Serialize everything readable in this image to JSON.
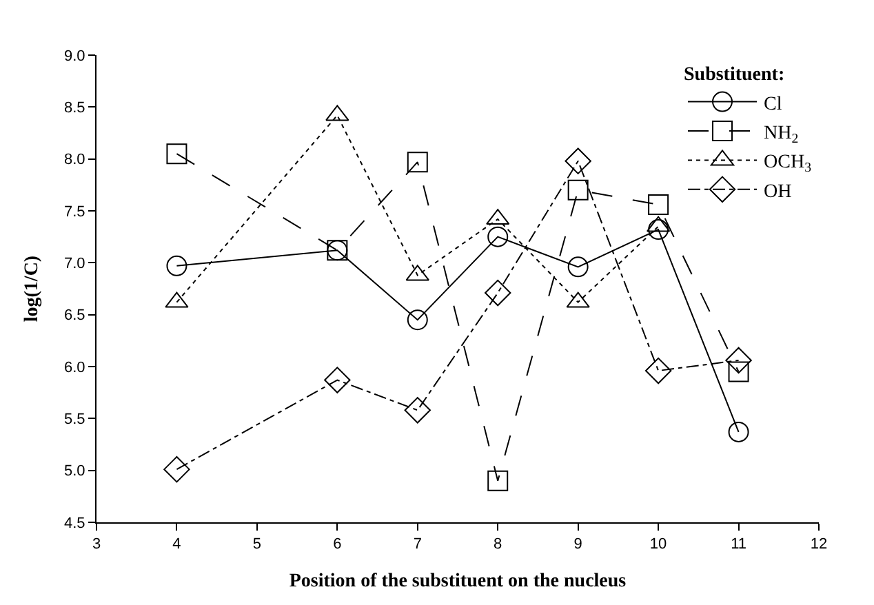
{
  "chart_data": {
    "type": "line",
    "xlabel": "Position of the substituent on the nucleus",
    "ylabel": "log(1/C)",
    "legend_title": "Substituent:",
    "legend": "top right",
    "grid": false,
    "xlim": [
      3,
      12
    ],
    "xticks": [
      3,
      4,
      5,
      6,
      7,
      8,
      9,
      10,
      11,
      12
    ],
    "ylim": [
      4.5,
      9.0
    ],
    "yticks": [
      {
        "value": 4.5,
        "label": "4.5"
      },
      {
        "value": 5,
        "label": "5.0"
      },
      {
        "value": 5.5,
        "label": "5.5"
      },
      {
        "value": 6,
        "label": "6.0"
      },
      {
        "value": 6.5,
        "label": "6.5"
      },
      {
        "value": 7,
        "label": "7.0"
      },
      {
        "value": 7.5,
        "label": "7.5"
      },
      {
        "value": 8,
        "label": "8.0"
      },
      {
        "value": 8.5,
        "label": "8.5"
      },
      {
        "value": 9,
        "label": "9.0"
      }
    ],
    "series": [
      {
        "name": "Cl",
        "color": "#000000",
        "marker": "circle",
        "line_style": "solid",
        "x": [
          4,
          6,
          7,
          8,
          9,
          10,
          11
        ],
        "values": [
          6.97,
          7.12,
          6.45,
          7.25,
          6.96,
          7.32,
          5.37
        ]
      },
      {
        "name": "NH$_{2}$",
        "color": "#000000",
        "marker": "square",
        "line_style": "dashed",
        "x": [
          4,
          6,
          7,
          8,
          9,
          10,
          11
        ],
        "values": [
          8.05,
          7.12,
          7.97,
          4.9,
          7.7,
          7.56,
          5.95
        ]
      },
      {
        "name": "OCH$_{3}$",
        "color": "#000000",
        "marker": "triangle",
        "line_style": "dotted",
        "x": [
          4,
          6,
          7,
          8,
          9,
          10
        ],
        "values": [
          6.62,
          8.42,
          6.88,
          7.42,
          6.62,
          7.35
        ]
      },
      {
        "name": "OH",
        "color": "#000000",
        "marker": "diamond",
        "line_style": "dashdot",
        "x": [
          4,
          6,
          7,
          8,
          9,
          10,
          11
        ],
        "values": [
          5.01,
          5.87,
          5.58,
          6.71,
          7.98,
          5.96,
          6.06
        ]
      }
    ]
  }
}
